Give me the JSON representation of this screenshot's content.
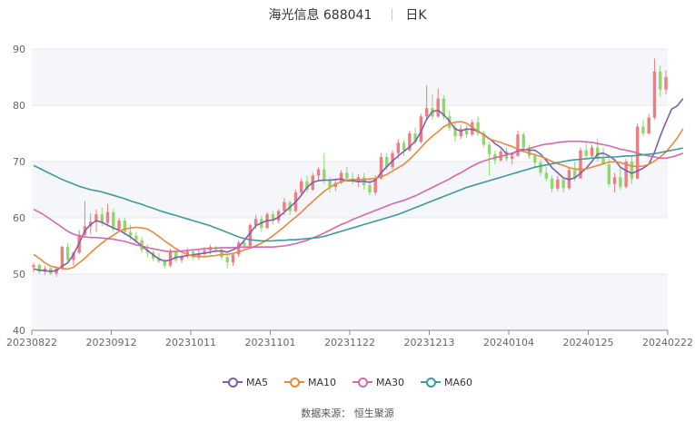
{
  "header": {
    "title": "海光信息 688041",
    "period": "日K"
  },
  "source": "数据来源： 恒生聚源",
  "chart_data": {
    "type": "candlestick",
    "ylim": [
      40,
      90
    ],
    "y_ticks": [
      40,
      50,
      60,
      70,
      80,
      90
    ],
    "x_tick_labels": [
      "20230822",
      "20230912",
      "20231011",
      "20231101",
      "20231122",
      "20231213",
      "20240104",
      "20240125",
      "20240222"
    ],
    "colors": {
      "up": "#f07c82",
      "down": "#8fd86a",
      "MA5": "#7b5fb3",
      "MA10": "#e9893d",
      "MA30": "#d866ac",
      "MA60": "#3f9a9f"
    },
    "candles_ohlc": [
      [
        51.2,
        52.0,
        50.3,
        51.6
      ],
      [
        51.6,
        51.9,
        50.0,
        50.4
      ],
      [
        50.4,
        51.5,
        49.9,
        51.0
      ],
      [
        51.0,
        51.2,
        49.8,
        50.1
      ],
      [
        50.1,
        51.3,
        49.5,
        51.0
      ],
      [
        51.0,
        55.0,
        50.8,
        54.8
      ],
      [
        54.8,
        55.5,
        52.0,
        52.5
      ],
      [
        52.5,
        54.0,
        51.5,
        53.8
      ],
      [
        53.8,
        57.8,
        53.5,
        57.0
      ],
      [
        57.0,
        63.0,
        56.5,
        58.5
      ],
      [
        58.5,
        60.8,
        57.0,
        59.3
      ],
      [
        59.3,
        61.5,
        57.5,
        60.6
      ],
      [
        60.6,
        61.8,
        58.5,
        59.1
      ],
      [
        59.1,
        62.5,
        58.5,
        61.0
      ],
      [
        61.0,
        61.6,
        57.5,
        58.0
      ],
      [
        58.0,
        60.0,
        57.5,
        59.5
      ],
      [
        59.5,
        60.0,
        57.0,
        57.5
      ],
      [
        57.5,
        58.8,
        56.0,
        56.8
      ],
      [
        56.8,
        57.5,
        55.5,
        56.0
      ],
      [
        56.0,
        56.6,
        53.8,
        54.3
      ],
      [
        54.3,
        55.3,
        53.0,
        53.8
      ],
      [
        53.8,
        54.2,
        52.3,
        52.8
      ],
      [
        52.8,
        53.8,
        52.0,
        52.2
      ],
      [
        52.2,
        52.8,
        51.0,
        51.5
      ],
      [
        51.5,
        54.5,
        51.2,
        53.9
      ],
      [
        53.9,
        54.5,
        52.0,
        52.5
      ],
      [
        52.5,
        53.5,
        52.0,
        53.2
      ],
      [
        53.2,
        54.6,
        52.8,
        54.0
      ],
      [
        54.0,
        54.3,
        52.5,
        53.0
      ],
      [
        53.0,
        54.5,
        52.5,
        53.6
      ],
      [
        53.6,
        54.8,
        53.0,
        54.2
      ],
      [
        54.2,
        55.2,
        53.5,
        54.8
      ],
      [
        54.8,
        55.0,
        53.8,
        54.4
      ],
      [
        54.4,
        54.6,
        52.5,
        53.0
      ],
      [
        53.0,
        53.5,
        51.0,
        52.1
      ],
      [
        52.1,
        53.8,
        51.5,
        53.5
      ],
      [
        53.5,
        56.0,
        53.0,
        55.6
      ],
      [
        55.6,
        56.5,
        54.5,
        55.0
      ],
      [
        55.0,
        59.0,
        54.5,
        58.7
      ],
      [
        58.7,
        60.5,
        58.0,
        59.8
      ],
      [
        59.8,
        60.4,
        57.5,
        58.2
      ],
      [
        58.2,
        61.0,
        58.0,
        60.6
      ],
      [
        60.6,
        61.2,
        58.8,
        59.5
      ],
      [
        59.5,
        61.5,
        59.0,
        61.2
      ],
      [
        61.2,
        63.5,
        60.5,
        62.8
      ],
      [
        62.8,
        63.0,
        60.5,
        61.2
      ],
      [
        61.2,
        65.0,
        61.0,
        64.5
      ],
      [
        64.5,
        67.0,
        64.0,
        66.5
      ],
      [
        66.5,
        67.5,
        64.5,
        65.0
      ],
      [
        65.0,
        68.0,
        64.8,
        67.5
      ],
      [
        67.5,
        69.0,
        66.5,
        68.6
      ],
      [
        68.6,
        71.5,
        66.0,
        66.6
      ],
      [
        66.6,
        67.3,
        64.5,
        65.5
      ],
      [
        65.5,
        67.0,
        64.8,
        66.2
      ],
      [
        66.2,
        68.5,
        66.0,
        68.0
      ],
      [
        68.0,
        69.0,
        66.5,
        67.0
      ],
      [
        67.0,
        68.0,
        66.0,
        66.5
      ],
      [
        66.5,
        67.8,
        65.5,
        67.2
      ],
      [
        67.2,
        68.0,
        65.0,
        65.8
      ],
      [
        65.8,
        67.0,
        64.0,
        64.5
      ],
      [
        64.5,
        67.5,
        64.0,
        67.0
      ],
      [
        67.0,
        71.5,
        66.8,
        70.8
      ],
      [
        70.8,
        71.5,
        68.5,
        69.0
      ],
      [
        69.0,
        72.0,
        68.5,
        71.5
      ],
      [
        71.5,
        74.0,
        70.5,
        73.3
      ],
      [
        73.3,
        73.8,
        71.0,
        72.0
      ],
      [
        72.0,
        75.5,
        71.8,
        75.0
      ],
      [
        75.0,
        76.0,
        73.0,
        73.5
      ],
      [
        73.5,
        78.5,
        73.2,
        78.0
      ],
      [
        78.0,
        83.5,
        77.5,
        79.5
      ],
      [
        79.5,
        82.0,
        77.5,
        78.0
      ],
      [
        78.0,
        83.0,
        77.8,
        81.2
      ],
      [
        81.2,
        81.8,
        77.5,
        78.0
      ],
      [
        78.0,
        79.0,
        75.5,
        76.0
      ],
      [
        76.0,
        77.0,
        73.5,
        74.5
      ],
      [
        74.5,
        76.5,
        74.0,
        75.8
      ],
      [
        75.8,
        76.5,
        74.2,
        74.8
      ],
      [
        74.8,
        77.5,
        74.5,
        77.0
      ],
      [
        77.0,
        78.0,
        74.5,
        75.0
      ],
      [
        75.0,
        75.5,
        72.5,
        73.0
      ],
      [
        73.0,
        73.5,
        67.5,
        71.3
      ],
      [
        71.3,
        72.0,
        69.5,
        70.2
      ],
      [
        70.2,
        72.2,
        70.0,
        71.8
      ],
      [
        71.8,
        72.5,
        70.0,
        70.5
      ],
      [
        70.5,
        71.5,
        69.5,
        71.0
      ],
      [
        71.0,
        75.5,
        70.8,
        74.8
      ],
      [
        74.8,
        75.2,
        72.0,
        72.5
      ],
      [
        72.5,
        73.0,
        70.5,
        71.0
      ],
      [
        71.0,
        71.5,
        69.0,
        69.8
      ],
      [
        69.8,
        70.5,
        67.5,
        68.0
      ],
      [
        68.0,
        69.0,
        66.5,
        67.0
      ],
      [
        67.0,
        67.5,
        64.5,
        65.2
      ],
      [
        65.2,
        67.5,
        64.8,
        66.8
      ],
      [
        66.8,
        67.0,
        64.5,
        65.3
      ],
      [
        65.3,
        69.0,
        65.0,
        68.5
      ],
      [
        68.5,
        70.0,
        66.5,
        67.0
      ],
      [
        67.0,
        72.5,
        67.0,
        72.0
      ],
      [
        72.0,
        73.5,
        70.5,
        71.0
      ],
      [
        71.0,
        73.0,
        70.5,
        72.5
      ],
      [
        72.5,
        74.0,
        70.0,
        70.5
      ],
      [
        70.5,
        72.5,
        69.5,
        69.5
      ],
      [
        69.5,
        71.0,
        65.5,
        66.0
      ],
      [
        66.0,
        68.0,
        64.5,
        67.2
      ],
      [
        67.2,
        68.8,
        65.0,
        65.5
      ],
      [
        65.5,
        70.5,
        65.2,
        70.0
      ],
      [
        70.0,
        71.0,
        66.0,
        67.0
      ],
      [
        67.0,
        76.8,
        66.8,
        76.2
      ],
      [
        76.2,
        77.5,
        74.5,
        75.0
      ],
      [
        75.0,
        78.5,
        74.8,
        77.8
      ],
      [
        77.8,
        88.3,
        77.5,
        86.0
      ],
      [
        86.0,
        87.0,
        81.5,
        82.8
      ],
      [
        82.8,
        86.2,
        82.0,
        85.0
      ]
    ],
    "series": [
      {
        "name": "MA5",
        "values": [
          50.9,
          50.7,
          50.6,
          50.5,
          50.6,
          51.4,
          52.0,
          53.5,
          55.5,
          57.7,
          58.8,
          59.5,
          59.2,
          58.7,
          58.2,
          57.8,
          57.2,
          56.6,
          55.8,
          55.0,
          54.2,
          53.4,
          52.7,
          52.3,
          52.5,
          53.0,
          53.1,
          53.3,
          53.4,
          53.6,
          53.7,
          53.9,
          54.1,
          54.1,
          53.9,
          54.3,
          54.8,
          56.0,
          57.3,
          58.6,
          59.1,
          59.5,
          59.6,
          60.1,
          61.0,
          61.9,
          62.8,
          64.0,
          65.4,
          66.3,
          66.6,
          66.7,
          66.7,
          66.8,
          66.9,
          66.6,
          66.6,
          66.4,
          66.5,
          66.3,
          66.7,
          68.0,
          69.1,
          70.1,
          71.0,
          71.8,
          72.6,
          73.6,
          75.3,
          77.5,
          78.9,
          79.1,
          78.3,
          77.2,
          75.8,
          75.4,
          75.8,
          75.7,
          75.4,
          74.8,
          74.1,
          73.2,
          72.5,
          71.4,
          71.3,
          72.0,
          72.2,
          72.0,
          72.0,
          71.3,
          70.2,
          68.9,
          68.0,
          67.1,
          66.8,
          67.1,
          67.9,
          68.8,
          70.0,
          71.3,
          71.5,
          71.0,
          70.3,
          69.0,
          68.4,
          67.9,
          68.3,
          68.8,
          69.5,
          71.7,
          74.5,
          77.0,
          79.3,
          79.9,
          81.2
        ],
        "values_missing_note": ""
      },
      {
        "name": "MA10",
        "values": [
          53.5,
          52.8,
          52.0,
          51.4,
          51.2,
          51.0,
          50.9,
          51.2,
          52.0,
          52.8,
          53.8,
          54.7,
          55.5,
          56.3,
          56.9,
          57.6,
          58.0,
          58.2,
          58.3,
          58.2,
          58.0,
          57.4,
          56.7,
          55.9,
          55.2,
          54.5,
          53.9,
          53.5,
          53.2,
          53.1,
          53.1,
          53.2,
          53.3,
          53.5,
          53.5,
          53.7,
          53.9,
          54.3,
          54.6,
          55.0,
          55.5,
          56.1,
          56.8,
          57.6,
          58.4,
          59.3,
          60.1,
          61.0,
          62.0,
          62.9,
          63.8,
          64.7,
          65.4,
          66.0,
          66.4,
          66.7,
          66.8,
          66.8,
          66.8,
          66.9,
          67.0,
          67.3,
          67.7,
          68.3,
          68.9,
          69.5,
          70.4,
          71.4,
          72.5,
          73.6,
          74.5,
          75.3,
          76.2,
          76.7,
          77.0,
          77.1,
          76.8,
          76.1,
          75.4,
          74.7,
          74.0,
          73.7,
          73.4,
          73.0,
          72.7,
          72.2,
          71.8,
          71.5,
          71.2,
          70.9,
          70.5,
          70.0,
          69.6,
          69.3,
          68.9,
          68.7,
          68.6,
          68.7,
          69.0,
          69.3,
          69.6,
          69.9,
          70.0,
          69.8,
          69.5,
          69.2,
          69.1,
          69.2,
          69.5,
          70.1,
          70.8,
          71.7,
          72.9,
          74.2,
          75.8
        ]
      },
      {
        "name": "MA30",
        "values": [
          61.5,
          61.0,
          60.4,
          59.7,
          59.0,
          58.3,
          57.6,
          57.1,
          56.8,
          56.6,
          56.5,
          56.5,
          56.4,
          56.3,
          56.2,
          56.0,
          55.8,
          55.5,
          55.2,
          55.0,
          54.7,
          54.5,
          54.3,
          54.1,
          54.0,
          54.0,
          54.1,
          54.2,
          54.3,
          54.4,
          54.5,
          54.6,
          54.6,
          54.7,
          54.7,
          54.7,
          54.8,
          54.8,
          54.8,
          54.8,
          54.8,
          54.8,
          54.8,
          54.9,
          55.0,
          55.2,
          55.4,
          55.7,
          56.0,
          56.4,
          56.8,
          57.3,
          57.8,
          58.3,
          58.8,
          59.2,
          59.7,
          60.1,
          60.5,
          60.9,
          61.3,
          61.7,
          62.1,
          62.5,
          62.8,
          63.1,
          63.5,
          63.9,
          64.4,
          64.9,
          65.4,
          65.9,
          66.4,
          66.9,
          67.5,
          68.0,
          68.6,
          69.2,
          69.7,
          70.1,
          70.4,
          70.7,
          70.9,
          71.2,
          71.5,
          71.8,
          72.0,
          72.3,
          72.6,
          72.9,
          73.1,
          73.2,
          73.4,
          73.5,
          73.6,
          73.6,
          73.6,
          73.5,
          73.4,
          73.2,
          73.0,
          72.8,
          72.5,
          72.2,
          72.0,
          71.8,
          71.5,
          71.2,
          71.0,
          70.8,
          70.6,
          70.6,
          70.8,
          71.1,
          71.5
        ]
      },
      {
        "name": "MA60",
        "values": [
          69.3,
          68.8,
          68.3,
          67.8,
          67.3,
          66.8,
          66.4,
          66.0,
          65.6,
          65.3,
          65.0,
          64.8,
          64.6,
          64.3,
          64.0,
          63.7,
          63.4,
          63.0,
          62.7,
          62.4,
          62.0,
          61.7,
          61.3,
          61.0,
          60.7,
          60.4,
          60.1,
          59.8,
          59.5,
          59.2,
          58.9,
          58.6,
          58.2,
          57.8,
          57.4,
          57.0,
          56.6,
          56.3,
          56.1,
          56.0,
          55.9,
          55.9,
          55.9,
          56.0,
          56.0,
          56.1,
          56.1,
          56.2,
          56.3,
          56.4,
          56.5,
          56.7,
          57.0,
          57.3,
          57.6,
          57.9,
          58.2,
          58.5,
          58.8,
          59.1,
          59.4,
          59.7,
          60.0,
          60.3,
          60.6,
          61.0,
          61.4,
          61.8,
          62.2,
          62.6,
          63.0,
          63.4,
          63.8,
          64.2,
          64.6,
          65.0,
          65.4,
          65.7,
          66.0,
          66.3,
          66.6,
          66.9,
          67.2,
          67.5,
          67.8,
          68.1,
          68.4,
          68.7,
          69.0,
          69.2,
          69.4,
          69.6,
          69.8,
          70.0,
          70.2,
          70.3,
          70.4,
          70.5,
          70.6,
          70.7,
          70.7,
          70.8,
          70.8,
          70.9,
          71.0,
          71.0,
          71.1,
          71.2,
          71.3,
          71.4,
          71.6,
          71.8,
          72.0,
          72.2,
          72.4
        ]
      }
    ]
  }
}
